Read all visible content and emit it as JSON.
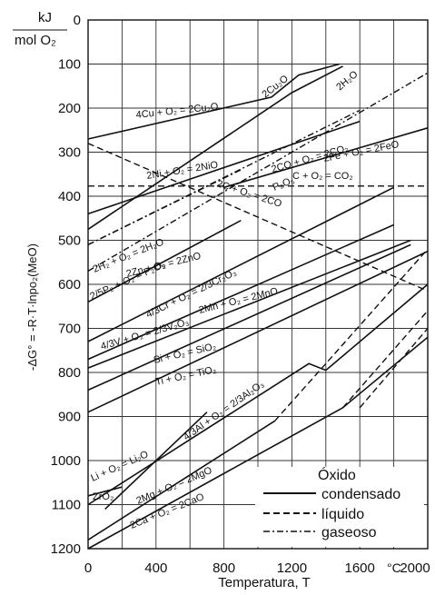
{
  "chart_data": {
    "type": "line",
    "ylabel_unit_top": "kJ",
    "ylabel_unit_bottom": "mol O₂",
    "ylabel": "-ΔG° = -R·T·lnpo₂(MeO)",
    "xlabel": "Temperatura, T",
    "x_unit": "°C",
    "xlim": [
      0,
      2000
    ],
    "ylim": [
      0,
      1200
    ],
    "y_reversed": true,
    "x_ticks": [
      0,
      400,
      800,
      1200,
      1600,
      2000
    ],
    "x_tick_labels": [
      "0",
      "400",
      "800",
      "1200",
      "1600",
      "2000"
    ],
    "y_ticks": [
      0,
      100,
      200,
      300,
      400,
      500,
      600,
      700,
      800,
      900,
      1000,
      1100,
      1200
    ],
    "grid": true,
    "legend": {
      "title": "Óxido",
      "entries": [
        {
          "label": "condensado",
          "style": "solid"
        },
        {
          "label": "líquido",
          "style": "dashed"
        },
        {
          "label": "gaseoso",
          "style": "dashdot"
        }
      ],
      "position": "bottom-right"
    },
    "series": [
      {
        "label": "4Cu + O₂ = 2Cu₂O",
        "style": "solid",
        "points": [
          [
            0,
            270
          ],
          [
            1080,
            175
          ],
          [
            1240,
            125
          ],
          [
            1480,
            100
          ]
        ]
      },
      {
        "label": "2Ni + O₂ = 2NiO",
        "style": "solid",
        "points": [
          [
            0,
            440
          ],
          [
            1600,
            230
          ]
        ]
      },
      {
        "label": "2H₂ + O₂ = 2H₂O",
        "style": "solid",
        "points": [
          [
            0,
            475
          ],
          [
            1200,
            165
          ],
          [
            1500,
            105
          ]
        ]
      },
      {
        "label": "2CO + O₂ = 2CO₂",
        "style": "dashdot",
        "points": [
          [
            0,
            570
          ],
          [
            2000,
            120
          ]
        ]
      },
      {
        "label": "P₂O₅",
        "style": "dashdot",
        "points": [
          [
            0,
            510
          ],
          [
            1600,
            205
          ]
        ]
      },
      {
        "label": "2Fe + O₂ = 2FeO",
        "style": "solid",
        "points": [
          [
            800,
            380
          ],
          [
            2000,
            245
          ]
        ]
      },
      {
        "label": "2C + O₂ = 2CO",
        "style": "dashed",
        "points": [
          [
            0,
            280
          ],
          [
            2000,
            615
          ]
        ]
      },
      {
        "label": "C + O₂ = CO₂",
        "style": "dashed",
        "points": [
          [
            0,
            377
          ],
          [
            2000,
            377
          ]
        ]
      },
      {
        "label": "2/5P₂ + O₂ = P₂O₅",
        "style": "dashdot",
        "points": [
          [
            0,
            510
          ],
          [
            900,
            340
          ]
        ]
      },
      {
        "label": "2Zn + O₂ = 2ZnO",
        "style": "solid",
        "points": [
          [
            0,
            640
          ],
          [
            900,
            455
          ]
        ]
      },
      {
        "label": "4/3Cr + O₂ = 2/3Cr₂O₃",
        "style": "solid",
        "points": [
          [
            0,
            730
          ],
          [
            1800,
            380
          ]
        ]
      },
      {
        "label": "2Mn + O₂ = 2MnO",
        "style": "solid",
        "points": [
          [
            0,
            770
          ],
          [
            1800,
            465
          ]
        ]
      },
      {
        "label": "4/3V + O₂ = 2/3V₂O₃",
        "style": "solid",
        "points": [
          [
            0,
            790
          ],
          [
            1900,
            500
          ]
        ]
      },
      {
        "label": "Si + O₂ = SiO₂",
        "style": "solid",
        "points": [
          [
            0,
            840
          ],
          [
            1900,
            510
          ]
        ]
      },
      {
        "label": "Ti + O₂ = TiO₂",
        "style": "solid",
        "points": [
          [
            0,
            890
          ],
          [
            2000,
            525
          ]
        ]
      },
      {
        "label": "4/3Al + O₂ = 2/3Al₂O₃",
        "style": "solid",
        "points": [
          [
            0,
            1100
          ],
          [
            1300,
            780
          ],
          [
            1400,
            795
          ],
          [
            2000,
            600
          ]
        ]
      },
      {
        "label": "Li + O₂ = Li₂O",
        "style": "solid",
        "points": [
          [
            100,
            1110
          ],
          [
            700,
            890
          ]
        ]
      },
      {
        "label": "2Mg + O₂ = 2MgO",
        "style": "solid",
        "points": [
          [
            0,
            1180
          ],
          [
            1100,
            910
          ]
        ]
      },
      {
        "label": "2Ca + O₂ = 2CaO",
        "style": "solid",
        "points": [
          [
            0,
            1200
          ],
          [
            1500,
            880
          ],
          [
            2000,
            720
          ]
        ]
      },
      {
        "label": "ZrO₂",
        "style": "solid",
        "points": [
          [
            0,
            1080
          ],
          [
            200,
            1060
          ]
        ]
      },
      {
        "label": "",
        "style": "dashed",
        "points": [
          [
            1100,
            910
          ],
          [
            2000,
            520
          ]
        ]
      },
      {
        "label": "",
        "style": "dashed",
        "points": [
          [
            1500,
            880
          ],
          [
            2000,
            660
          ]
        ]
      },
      {
        "label": "",
        "style": "dashed",
        "points": [
          [
            1600,
            880
          ],
          [
            2000,
            700
          ]
        ]
      }
    ]
  }
}
